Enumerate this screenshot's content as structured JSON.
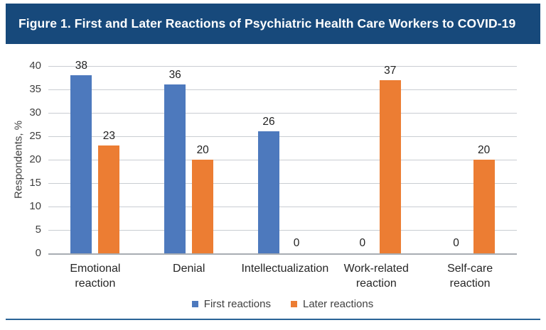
{
  "title": "Figure 1. First and Later Reactions of Psychiatric Health Care Workers to COVID-19",
  "colors": {
    "title_bar_bg": "#17497B",
    "first_series": "#4D79BD",
    "later_series": "#EC7D33",
    "gridline": "#C9CDD2",
    "baseline": "#A8ADB3",
    "divider": "#2A6496"
  },
  "chart_data": {
    "type": "bar",
    "categories": [
      "Emotional reaction",
      "Denial",
      "Intellectualization",
      "Work-related reaction",
      "Self-care reaction"
    ],
    "series": [
      {
        "name": "First reactions",
        "color": "#4D79BD",
        "values": [
          38,
          36,
          26,
          0,
          0
        ]
      },
      {
        "name": "Later reactions",
        "color": "#EC7D33",
        "values": [
          23,
          20,
          0,
          37,
          20
        ]
      }
    ],
    "title": "Figure 1. First and Later Reactions of Psychiatric Health Care Workers to COVID-19",
    "xlabel": "",
    "ylabel": "Respondents, %",
    "ylim": [
      0,
      40
    ],
    "yticks": [
      0,
      5,
      10,
      15,
      20,
      25,
      30,
      35,
      40
    ],
    "grid": true,
    "legend_position": "bottom",
    "data_labels": true
  }
}
